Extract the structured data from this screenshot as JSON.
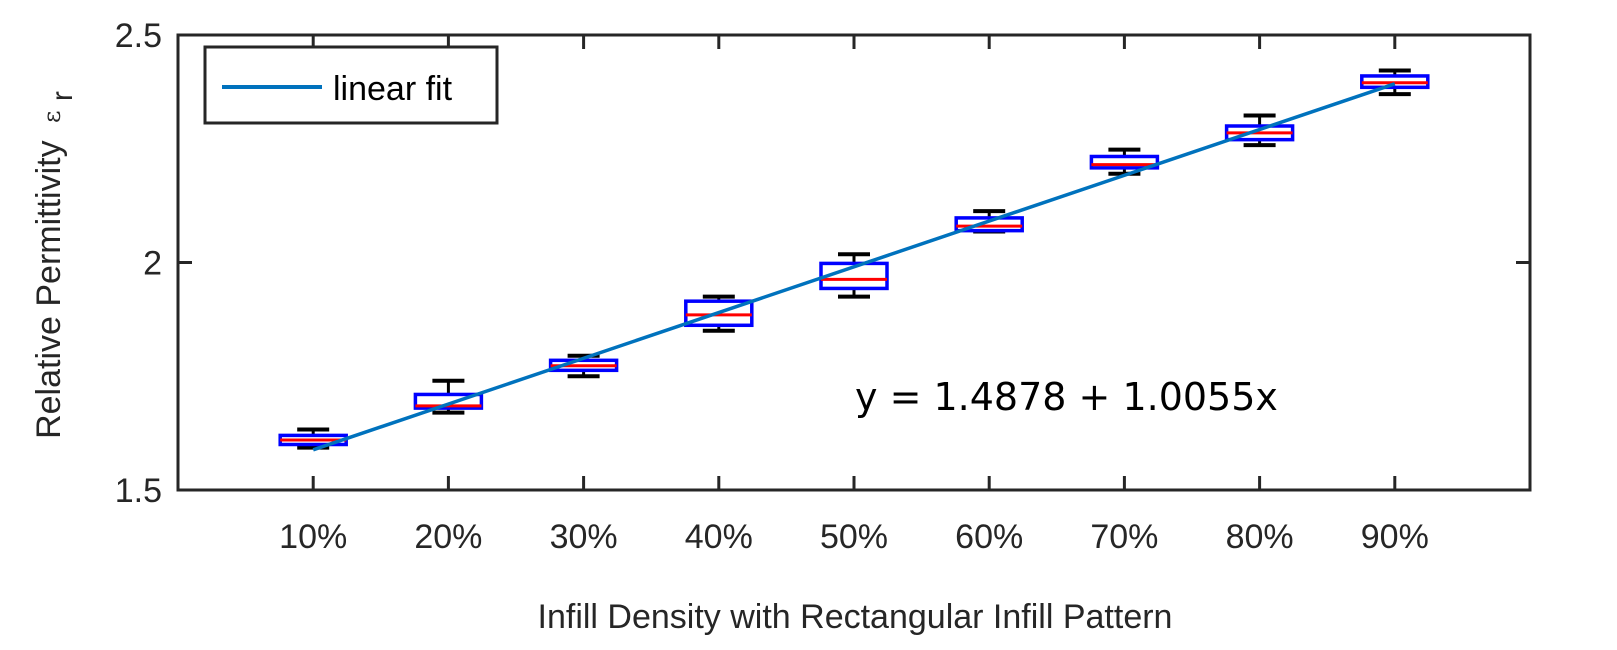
{
  "chart_data": {
    "type": "box",
    "title": "",
    "xlabel": "Infill Density with Rectangular Infill Pattern",
    "ylabel": "Relative Permittivity",
    "ylabel_symbol": "ε",
    "ylabel_subscript": "r",
    "ylim": [
      1.5,
      2.5
    ],
    "yticks": [
      "1.5",
      "2",
      "2.5"
    ],
    "ytick_values": [
      1.5,
      2.0,
      2.5
    ],
    "categories": [
      "10%",
      "20%",
      "30%",
      "40%",
      "50%",
      "60%",
      "70%",
      "80%",
      "90%"
    ],
    "x_values": [
      0.1,
      0.2,
      0.3,
      0.4,
      0.5,
      0.6,
      0.7,
      0.8,
      0.9
    ],
    "boxes": [
      {
        "category": "10%",
        "whisker_low": 1.593,
        "q1": 1.6,
        "median": 1.61,
        "q3": 1.62,
        "whisker_high": 1.633
      },
      {
        "category": "20%",
        "whisker_low": 1.67,
        "q1": 1.68,
        "median": 1.685,
        "q3": 1.71,
        "whisker_high": 1.74
      },
      {
        "category": "30%",
        "whisker_low": 1.75,
        "q1": 1.763,
        "median": 1.773,
        "q3": 1.785,
        "whisker_high": 1.795
      },
      {
        "category": "40%",
        "whisker_low": 1.85,
        "q1": 1.862,
        "median": 1.885,
        "q3": 1.915,
        "whisker_high": 1.925
      },
      {
        "category": "50%",
        "whisker_low": 1.925,
        "q1": 1.943,
        "median": 1.963,
        "q3": 1.998,
        "whisker_high": 2.018
      },
      {
        "category": "60%",
        "whisker_low": 2.068,
        "q1": 2.07,
        "median": 2.08,
        "q3": 2.098,
        "whisker_high": 2.113
      },
      {
        "category": "70%",
        "whisker_low": 2.195,
        "q1": 2.208,
        "median": 2.215,
        "q3": 2.233,
        "whisker_high": 2.248
      },
      {
        "category": "80%",
        "whisker_low": 2.258,
        "q1": 2.27,
        "median": 2.285,
        "q3": 2.3,
        "whisker_high": 2.323
      },
      {
        "category": "90%",
        "whisker_low": 2.37,
        "q1": 2.385,
        "median": 2.395,
        "q3": 2.41,
        "whisker_high": 2.422
      }
    ],
    "fit": {
      "label": "linear fit",
      "intercept": 1.4878,
      "slope": 1.0055,
      "x_range": [
        0.1,
        0.9
      ],
      "equation_text": "y = 1.4878 + 1.0055x"
    },
    "legend": {
      "position": "top-left",
      "entries": [
        "linear fit"
      ]
    },
    "grid": false,
    "colors": {
      "box": "#0000ff",
      "median": "#ff0000",
      "whisker": "#000000",
      "fit": "#0072bd",
      "axes": "#262626"
    }
  }
}
